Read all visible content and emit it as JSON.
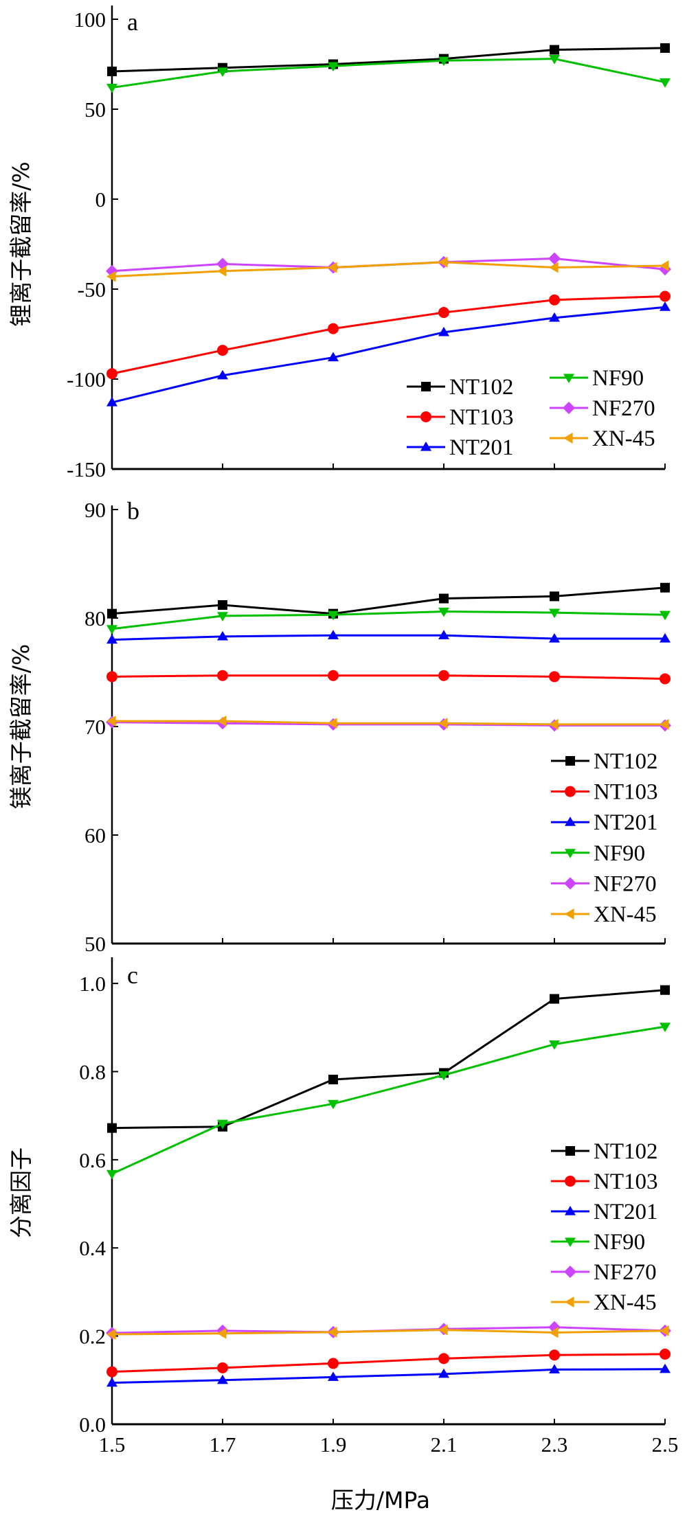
{
  "x_axis": {
    "label": "压力/MPa",
    "ticks": [
      "1.5",
      "1.7",
      "1.9",
      "2.1",
      "2.3",
      "2.5"
    ]
  },
  "series_styles": [
    {
      "name": "NT102",
      "color": "#000000",
      "marker": "square"
    },
    {
      "name": "NT103",
      "color": "#ff0000",
      "marker": "circle"
    },
    {
      "name": "NT201",
      "color": "#0000ff",
      "marker": "triangle-up"
    },
    {
      "name": "NF90",
      "color": "#00c000",
      "marker": "triangle-down"
    },
    {
      "name": "NF270",
      "color": "#cc44ff",
      "marker": "diamond"
    },
    {
      "name": "XN-45",
      "color": "#f0a000",
      "marker": "triangle-left"
    }
  ],
  "chart_data": [
    {
      "type": "line",
      "panel": "a",
      "ylabel": "锂离子截留率/%",
      "ylim": [
        -150,
        100
      ],
      "yticks": [
        "100",
        "50",
        "0",
        "-50",
        "-100",
        "-150"
      ],
      "x": [
        1.5,
        1.7,
        1.9,
        2.1,
        2.3,
        2.5
      ],
      "legend": "lower-right, two columns",
      "series": [
        {
          "name": "NT102",
          "values": [
            71,
            73,
            75,
            78,
            83,
            84
          ]
        },
        {
          "name": "NT103",
          "values": [
            -97,
            -84,
            -72,
            -63,
            -56,
            -54
          ]
        },
        {
          "name": "NT201",
          "values": [
            -113,
            -98,
            -88,
            -74,
            -66,
            -60
          ]
        },
        {
          "name": "NF90",
          "values": [
            62,
            71,
            74,
            77,
            78,
            65
          ]
        },
        {
          "name": "NF270",
          "values": [
            -40,
            -36,
            -38,
            -35,
            -33,
            -39
          ]
        },
        {
          "name": "XN-45",
          "values": [
            -43,
            -40,
            -38,
            -35,
            -38,
            -37
          ]
        }
      ]
    },
    {
      "type": "line",
      "panel": "b",
      "ylabel": "镁离子截留率/%",
      "ylim": [
        50,
        90
      ],
      "yticks": [
        "90",
        "80",
        "70",
        "60",
        "50"
      ],
      "x": [
        1.5,
        1.7,
        1.9,
        2.1,
        2.3,
        2.5
      ],
      "legend": "lower-right",
      "series": [
        {
          "name": "NT102",
          "values": [
            80.4,
            81.2,
            80.4,
            81.8,
            82.0,
            82.8
          ]
        },
        {
          "name": "NT103",
          "values": [
            74.6,
            74.7,
            74.7,
            74.7,
            74.6,
            74.4
          ]
        },
        {
          "name": "NT201",
          "values": [
            78.0,
            78.3,
            78.4,
            78.4,
            78.1,
            78.1
          ]
        },
        {
          "name": "NF90",
          "values": [
            79.0,
            80.2,
            80.3,
            80.6,
            80.5,
            80.3
          ]
        },
        {
          "name": "NF270",
          "values": [
            70.4,
            70.3,
            70.2,
            70.2,
            70.1,
            70.1
          ]
        },
        {
          "name": "XN-45",
          "values": [
            70.5,
            70.5,
            70.3,
            70.3,
            70.2,
            70.2
          ]
        }
      ]
    },
    {
      "type": "line",
      "panel": "c",
      "ylabel": "分离因子",
      "ylim": [
        0,
        1.05
      ],
      "yticks": [
        "1.0",
        "0.8",
        "0.6",
        "0.4",
        "0.2",
        "0.0"
      ],
      "x": [
        1.5,
        1.7,
        1.9,
        2.1,
        2.3,
        2.5
      ],
      "legend": "lower-right",
      "series": [
        {
          "name": "NT102",
          "values": [
            0.672,
            0.675,
            0.782,
            0.797,
            0.965,
            0.985
          ]
        },
        {
          "name": "NT103",
          "values": [
            0.119,
            0.128,
            0.138,
            0.149,
            0.157,
            0.159
          ]
        },
        {
          "name": "NT201",
          "values": [
            0.094,
            0.1,
            0.107,
            0.114,
            0.124,
            0.125
          ]
        },
        {
          "name": "NF90",
          "values": [
            0.568,
            0.682,
            0.727,
            0.792,
            0.862,
            0.902
          ]
        },
        {
          "name": "NF270",
          "values": [
            0.207,
            0.212,
            0.209,
            0.216,
            0.22,
            0.212
          ]
        },
        {
          "name": "XN-45",
          "values": [
            0.204,
            0.206,
            0.209,
            0.214,
            0.208,
            0.212
          ]
        }
      ]
    }
  ]
}
